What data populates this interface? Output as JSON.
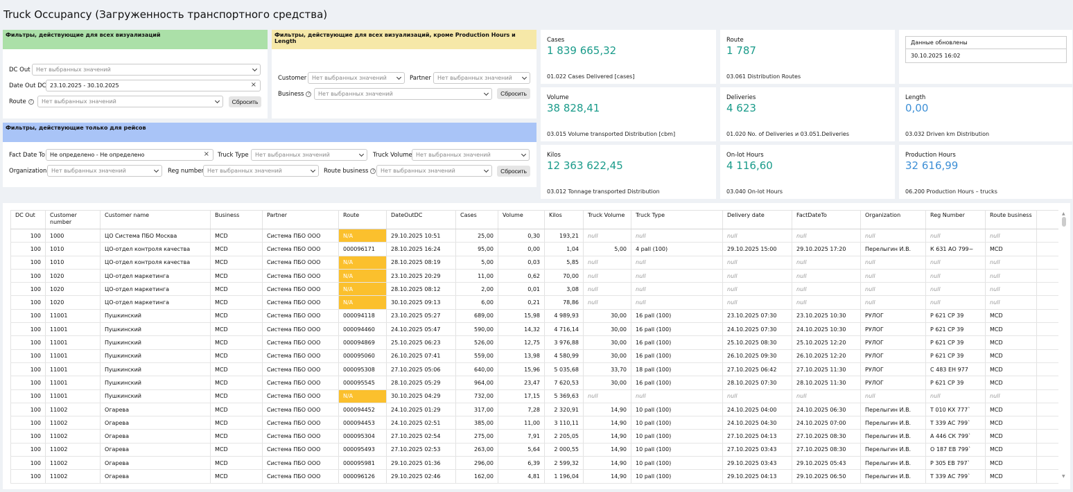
{
  "title": "Truck Occupancy (Загруженность транспортного средства)",
  "filters": {
    "all_header": "Фильтры, действующие для всех визуализаций",
    "except_header": "Фильтры, действующие для всех визуализаций, кроме Production Hours и Length",
    "trips_header": "Фильтры, действующие только для рейсов",
    "placeholder": "Нет выбранных значений",
    "reset": "Сбросить",
    "dc_out_label": "DC Out",
    "date_out_label": "Date Out DC",
    "date_out_value": "23.10.2025 - 30.10.2025",
    "route_label": "Route",
    "customer_label": "Customer",
    "partner_label": "Partner",
    "business_label": "Business",
    "fact_date_label": "Fact Date To",
    "fact_date_value": "Не определено - Не определено",
    "truck_type_label": "Truck Type",
    "truck_volume_label": "Truck Volume",
    "organization_label": "Organization",
    "reg_number_label": "Reg number",
    "route_business_label": "Route business"
  },
  "kpis": {
    "cases": {
      "label": "Cases",
      "value": "1 839 665,32",
      "sub": "01.022 Cases Delivered [cases]"
    },
    "route": {
      "label": "Route",
      "value": "1 787",
      "sub": "03.061 Distribution Routes"
    },
    "volume": {
      "label": "Volume",
      "value": "38 828,41",
      "sub": "03.015 Volume transported Distribution [cbm]"
    },
    "deliveries": {
      "label": "Deliveries",
      "value": "4 623",
      "sub": "01.020 No. of Deliveries и 03.051.Deliveries"
    },
    "length": {
      "label": "Length",
      "value": "0,00",
      "sub": "03.032 Driven km Distribution"
    },
    "kilos": {
      "label": "Kilos",
      "value": "12 363 622,45",
      "sub": "03.012 Tonnage transported Distribution"
    },
    "onlot": {
      "label": "On-lot Hours",
      "value": "4 116,60",
      "sub": "03.040 On-lot Hours"
    },
    "production": {
      "label": "Production Hours",
      "value": "32 616,99",
      "sub": "06.200 Production Hours – trucks"
    }
  },
  "updated": {
    "title": "Данные обновлены",
    "value": "30.10.2025 16:02"
  },
  "colors": {
    "accent_value": "#1a9b8a",
    "blue_value": "#3d8fd6",
    "na_cell": "#fbc02d"
  },
  "table": {
    "headers": [
      "DC Out",
      "Customer number",
      "Customer name",
      "Business",
      "Partner",
      "Route",
      "DateOutDC",
      "Cases",
      "Volume",
      "Kilos",
      "Truck Volume",
      "Truck Type",
      "Delivery date",
      "FactDateTo",
      "Organization",
      "Reg Number",
      "Route business"
    ],
    "rows": [
      [
        "100",
        "1000",
        "ЦО Система ПБО Москва",
        "MCD",
        "Система ПБО ООО",
        "N/A",
        "29.10.2025 10:51",
        "25,00",
        "0,30",
        "193,21",
        "null",
        "null",
        "null",
        "null",
        "null",
        "null",
        "null"
      ],
      [
        "100",
        "1010",
        "ЦО-отдел контроля качества",
        "MCD",
        "Система ПБО ООО",
        "000096171",
        "28.10.2025 16:24",
        "95,00",
        "0,00",
        "1,04",
        "5,00",
        "4 pall (100)",
        "29.10.2025 15:00",
        "29.10.2025 17:20",
        "Перелыгин И.В.",
        "К 631 АО 799~",
        "MCD"
      ],
      [
        "100",
        "1010",
        "ЦО-отдел контроля качества",
        "MCD",
        "Система ПБО ООО",
        "N/A",
        "28.10.2025 08:19",
        "5,00",
        "0,03",
        "5,85",
        "null",
        "null",
        "null",
        "null",
        "null",
        "null",
        "null"
      ],
      [
        "100",
        "1020",
        "ЦО-отдел маркетинга",
        "MCD",
        "Система ПБО ООО",
        "N/A",
        "23.10.2025 20:29",
        "11,00",
        "0,62",
        "70,00",
        "null",
        "null",
        "null",
        "null",
        "null",
        "null",
        "null"
      ],
      [
        "100",
        "1020",
        "ЦО-отдел маркетинга",
        "MCD",
        "Система ПБО ООО",
        "N/A",
        "28.10.2025 08:12",
        "2,00",
        "0,01",
        "3,08",
        "null",
        "null",
        "null",
        "null",
        "null",
        "null",
        "null"
      ],
      [
        "100",
        "1020",
        "ЦО-отдел маркетинга",
        "MCD",
        "Система ПБО ООО",
        "N/A",
        "30.10.2025 09:13",
        "6,00",
        "0,21",
        "78,86",
        "null",
        "null",
        "null",
        "null",
        "null",
        "null",
        "null"
      ],
      [
        "100",
        "11001",
        "Пушкинский",
        "MCD",
        "Система ПБО ООО",
        "000094118",
        "23.10.2025 05:27",
        "689,00",
        "15,98",
        "4 989,93",
        "30,00",
        "16 pall (100)",
        "23.10.2025 07:30",
        "23.10.2025 10:30",
        "РУЛОГ",
        "Р 621 СР 39",
        "MCD"
      ],
      [
        "100",
        "11001",
        "Пушкинский",
        "MCD",
        "Система ПБО ООО",
        "000094460",
        "24.10.2025 05:47",
        "590,00",
        "14,32",
        "4 716,14",
        "30,00",
        "16 pall (100)",
        "24.10.2025 07:30",
        "24.10.2025 10:30",
        "РУЛОГ",
        "Р 621 СР 39",
        "MCD"
      ],
      [
        "100",
        "11001",
        "Пушкинский",
        "MCD",
        "Система ПБО ООО",
        "000094869",
        "25.10.2025 06:23",
        "526,00",
        "12,75",
        "3 976,88",
        "30,00",
        "16 pall (100)",
        "25.10.2025 08:30",
        "25.10.2025 12:20",
        "РУЛОГ",
        "Р 621 СР 39",
        "MCD"
      ],
      [
        "100",
        "11001",
        "Пушкинский",
        "MCD",
        "Система ПБО ООО",
        "000095060",
        "26.10.2025 07:41",
        "559,00",
        "13,98",
        "4 580,99",
        "30,00",
        "16 pall (100)",
        "26.10.2025 09:30",
        "26.10.2025 12:20",
        "РУЛОГ",
        "Р 621 СР 39",
        "MCD"
      ],
      [
        "100",
        "11001",
        "Пушкинский",
        "MCD",
        "Система ПБО ООО",
        "000095308",
        "27.10.2025 05:06",
        "640,00",
        "15,96",
        "5 035,68",
        "33,70",
        "18 pall (100)",
        "27.10.2025 06:42",
        "27.10.2025 11:30",
        "РУЛОГ",
        "С 483 ЕН 977",
        "MCD"
      ],
      [
        "100",
        "11001",
        "Пушкинский",
        "MCD",
        "Система ПБО ООО",
        "000095545",
        "28.10.2025 05:29",
        "964,00",
        "23,47",
        "7 620,53",
        "30,00",
        "16 pall (100)",
        "28.10.2025 07:30",
        "28.10.2025 11:30",
        "РУЛОГ",
        "Р 621 СР 39",
        "MCD"
      ],
      [
        "100",
        "11001",
        "Пушкинский",
        "MCD",
        "Система ПБО ООО",
        "N/A",
        "30.10.2025 04:29",
        "732,00",
        "17,15",
        "5 369,63",
        "null",
        "null",
        "null",
        "null",
        "null",
        "null",
        "null"
      ],
      [
        "100",
        "11002",
        "Огарева",
        "MCD",
        "Система ПБО ООО",
        "000094452",
        "24.10.2025 01:29",
        "317,00",
        "7,28",
        "2 320,91",
        "14,90",
        "10 pall (100)",
        "24.10.2025 04:00",
        "24.10.2025 06:30",
        "Перелыгин И.В.",
        "Т 010 КХ 777`",
        "MCD"
      ],
      [
        "100",
        "11002",
        "Огарева",
        "MCD",
        "Система ПБО ООО",
        "000094453",
        "24.10.2025 02:51",
        "385,00",
        "11,00",
        "3 110,11",
        "14,90",
        "10 pall (100)",
        "24.10.2025 04:30",
        "24.10.2025 07:00",
        "Перелыгин И.В.",
        "Т 339 АС 799`",
        "MCD"
      ],
      [
        "100",
        "11002",
        "Огарева",
        "MCD",
        "Система ПБО ООО",
        "000095304",
        "27.10.2025 02:54",
        "275,00",
        "7,91",
        "2 205,05",
        "14,90",
        "10 pall (100)",
        "27.10.2025 04:13",
        "27.10.2025 08:30",
        "Перелыгин И.В.",
        "А 446 СК 799`",
        "MCD"
      ],
      [
        "100",
        "11002",
        "Огарева",
        "MCD",
        "Система ПБО ООО",
        "000095493",
        "27.10.2025 02:53",
        "263,00",
        "5,64",
        "2 000,55",
        "14,90",
        "10 pall (100)",
        "27.10.2025 03:43",
        "27.10.2025 08:30",
        "Перелыгин И.В.",
        "О 187 ЕВ 799`",
        "MCD"
      ],
      [
        "100",
        "11002",
        "Огарева",
        "MCD",
        "Система ПБО ООО",
        "000095981",
        "29.10.2025 01:36",
        "296,00",
        "6,39",
        "2 599,32",
        "14,90",
        "10 pall (100)",
        "29.10.2025 03:43",
        "29.10.2025 05:43",
        "Перелыгин И.В.",
        "Р 305 ЕВ 797`",
        "MCD"
      ],
      [
        "100",
        "11002",
        "Огарева",
        "MCD",
        "Система ПБО ООО",
        "000096126",
        "29.10.2025 02:46",
        "162,00",
        "4,81",
        "1 196,04",
        "14,90",
        "10 pall (100)",
        "29.10.2025 04:13",
        "29.10.2025 06:50",
        "Перелыгин И.В.",
        "Т 339 АС 799`",
        "MCD"
      ]
    ]
  }
}
